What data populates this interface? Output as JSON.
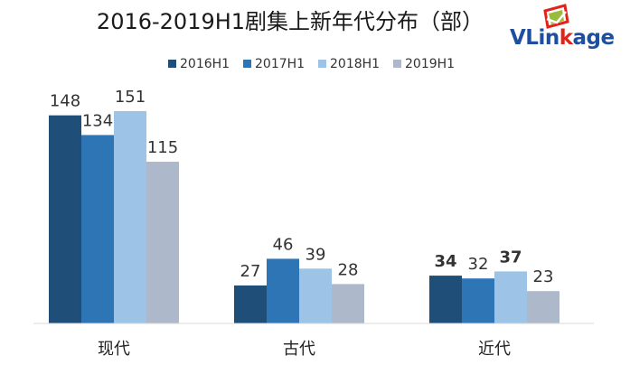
{
  "chart_data": {
    "type": "bar",
    "title": "2016-2019H1剧集上新年代分布（部）",
    "categories": [
      "现代",
      "古代",
      "近代"
    ],
    "series": [
      {
        "name": "2016H1",
        "values": [
          148,
          27,
          34
        ],
        "color": "#1f4e79"
      },
      {
        "name": "2017H1",
        "values": [
          134,
          46,
          32
        ],
        "color": "#2e75b6"
      },
      {
        "name": "2018H1",
        "values": [
          151,
          39,
          37
        ],
        "color": "#9dc3e6"
      },
      {
        "name": "2019H1",
        "values": [
          115,
          28,
          23
        ],
        "color": "#adb9ca"
      }
    ],
    "bold_labels": [
      [],
      [],
      [
        true,
        false,
        true
      ]
    ],
    "ylim": [
      0,
      165
    ],
    "grid": false,
    "legend_position": "top"
  },
  "logo": {
    "text": "VLinkage",
    "text_color": "#1f4ea1",
    "letter_k_color": "#e2231a",
    "mark_color": "#e2231a",
    "mark_secondary_color": "#9bbb3c"
  }
}
